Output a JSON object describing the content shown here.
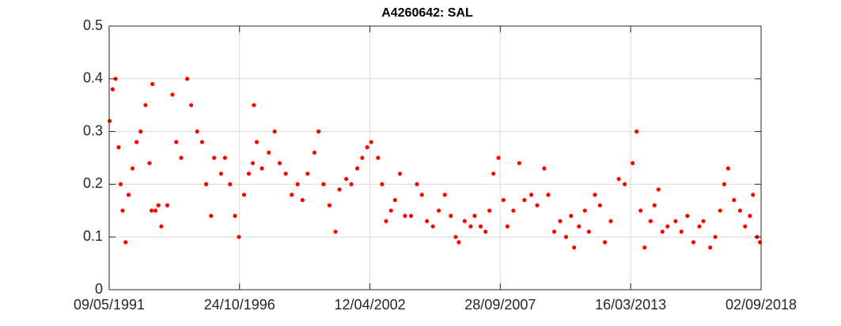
{
  "chart_data": {
    "type": "scatter",
    "title": "A4260642: SAL",
    "color": "#ff0000",
    "grid": true,
    "xlim": [
      "1991-05-09",
      "2018-09-02"
    ],
    "xticks": [
      {
        "value": "1991-05-09",
        "label": "09/05/1991"
      },
      {
        "value": "1996-10-24",
        "label": "24/10/1996"
      },
      {
        "value": "2002-04-12",
        "label": "12/04/2002"
      },
      {
        "value": "2007-09-28",
        "label": "28/09/2007"
      },
      {
        "value": "2013-03-16",
        "label": "16/03/2013"
      },
      {
        "value": "2018-09-02",
        "label": "02/09/2018"
      }
    ],
    "ylim": [
      0,
      0.5
    ],
    "yticks": [
      0,
      0.1,
      0.2,
      0.3,
      0.4,
      0.5
    ],
    "x": [
      "1991-05-15",
      "1991-07-01",
      "1991-08-15",
      "1991-10-01",
      "1991-11-01",
      "1991-12-01",
      "1992-01-15",
      "1992-03-01",
      "1992-05-01",
      "1992-07-01",
      "1992-09-01",
      "1992-11-15",
      "1993-01-15",
      "1993-02-15",
      "1993-03-01",
      "1993-04-15",
      "1993-06-01",
      "1993-07-15",
      "1993-10-15",
      "1994-01-01",
      "1994-03-01",
      "1994-05-15",
      "1994-08-15",
      "1994-10-15",
      "1995-01-15",
      "1995-04-01",
      "1995-06-01",
      "1995-08-15",
      "1995-10-01",
      "1996-01-15",
      "1996-03-15",
      "1996-06-01",
      "1996-08-15",
      "1996-10-15",
      "1997-01-01",
      "1997-03-15",
      "1997-05-15",
      "1997-06-01",
      "1997-07-15",
      "1997-10-01",
      "1998-01-15",
      "1998-04-15",
      "1998-07-01",
      "1998-10-01",
      "1999-01-01",
      "1999-04-01",
      "1999-06-15",
      "1999-09-01",
      "1999-12-15",
      "2000-02-15",
      "2000-05-01",
      "2000-08-01",
      "2000-11-01",
      "2001-01-01",
      "2001-04-15",
      "2001-07-01",
      "2001-10-01",
      "2001-12-15",
      "2002-03-01",
      "2002-05-01",
      "2002-08-15",
      "2002-10-15",
      "2002-12-15",
      "2003-03-01",
      "2003-05-01",
      "2003-07-15",
      "2003-10-01",
      "2004-01-01",
      "2004-04-01",
      "2004-06-15",
      "2004-09-01",
      "2004-12-01",
      "2005-03-01",
      "2005-06-01",
      "2005-09-01",
      "2005-11-15",
      "2006-01-01",
      "2006-04-01",
      "2006-07-01",
      "2006-09-01",
      "2006-12-01",
      "2007-02-15",
      "2007-04-15",
      "2007-06-15",
      "2007-09-01",
      "2007-11-15",
      "2008-01-15",
      "2008-04-15",
      "2008-07-15",
      "2008-10-01",
      "2009-01-15",
      "2009-04-15",
      "2009-08-01",
      "2009-10-01",
      "2010-01-01",
      "2010-04-01",
      "2010-07-01",
      "2010-09-15",
      "2010-11-01",
      "2011-01-15",
      "2011-04-15",
      "2011-06-15",
      "2011-09-15",
      "2011-12-01",
      "2012-02-15",
      "2012-05-15",
      "2012-09-15",
      "2012-12-15",
      "2013-04-15",
      "2013-06-15",
      "2013-08-15",
      "2013-10-15",
      "2014-01-15",
      "2014-03-15",
      "2014-05-15",
      "2014-07-15",
      "2014-10-01",
      "2015-02-01",
      "2015-05-01",
      "2015-08-01",
      "2015-11-01",
      "2016-02-01",
      "2016-04-01",
      "2016-07-15",
      "2016-10-01",
      "2016-12-15",
      "2017-02-15",
      "2017-04-15",
      "2017-07-15",
      "2017-10-15",
      "2018-01-01",
      "2018-03-15",
      "2018-05-01",
      "2018-07-01",
      "2018-08-15"
    ],
    "values": [
      0.32,
      0.38,
      0.4,
      0.27,
      0.2,
      0.15,
      0.09,
      0.18,
      0.23,
      0.28,
      0.3,
      0.35,
      0.24,
      0.15,
      0.39,
      0.15,
      0.16,
      0.12,
      0.16,
      0.37,
      0.28,
      0.25,
      0.4,
      0.35,
      0.3,
      0.28,
      0.2,
      0.14,
      0.25,
      0.22,
      0.25,
      0.2,
      0.14,
      0.1,
      0.18,
      0.22,
      0.24,
      0.35,
      0.28,
      0.23,
      0.26,
      0.3,
      0.24,
      0.22,
      0.18,
      0.2,
      0.17,
      0.22,
      0.26,
      0.3,
      0.2,
      0.16,
      0.11,
      0.19,
      0.21,
      0.2,
      0.23,
      0.25,
      0.27,
      0.28,
      0.25,
      0.2,
      0.13,
      0.15,
      0.17,
      0.22,
      0.14,
      0.14,
      0.2,
      0.18,
      0.13,
      0.12,
      0.15,
      0.18,
      0.14,
      0.1,
      0.09,
      0.13,
      0.12,
      0.14,
      0.12,
      0.11,
      0.15,
      0.22,
      0.25,
      0.17,
      0.12,
      0.15,
      0.24,
      0.17,
      0.18,
      0.16,
      0.23,
      0.18,
      0.11,
      0.13,
      0.1,
      0.14,
      0.08,
      0.12,
      0.15,
      0.11,
      0.18,
      0.16,
      0.09,
      0.13,
      0.21,
      0.2,
      0.24,
      0.3,
      0.15,
      0.08,
      0.13,
      0.16,
      0.19,
      0.11,
      0.12,
      0.13,
      0.11,
      0.14,
      0.09,
      0.12,
      0.13,
      0.08,
      0.1,
      0.15,
      0.2,
      0.23,
      0.17,
      0.15,
      0.12,
      0.14,
      0.18,
      0.1,
      0.09
    ]
  }
}
